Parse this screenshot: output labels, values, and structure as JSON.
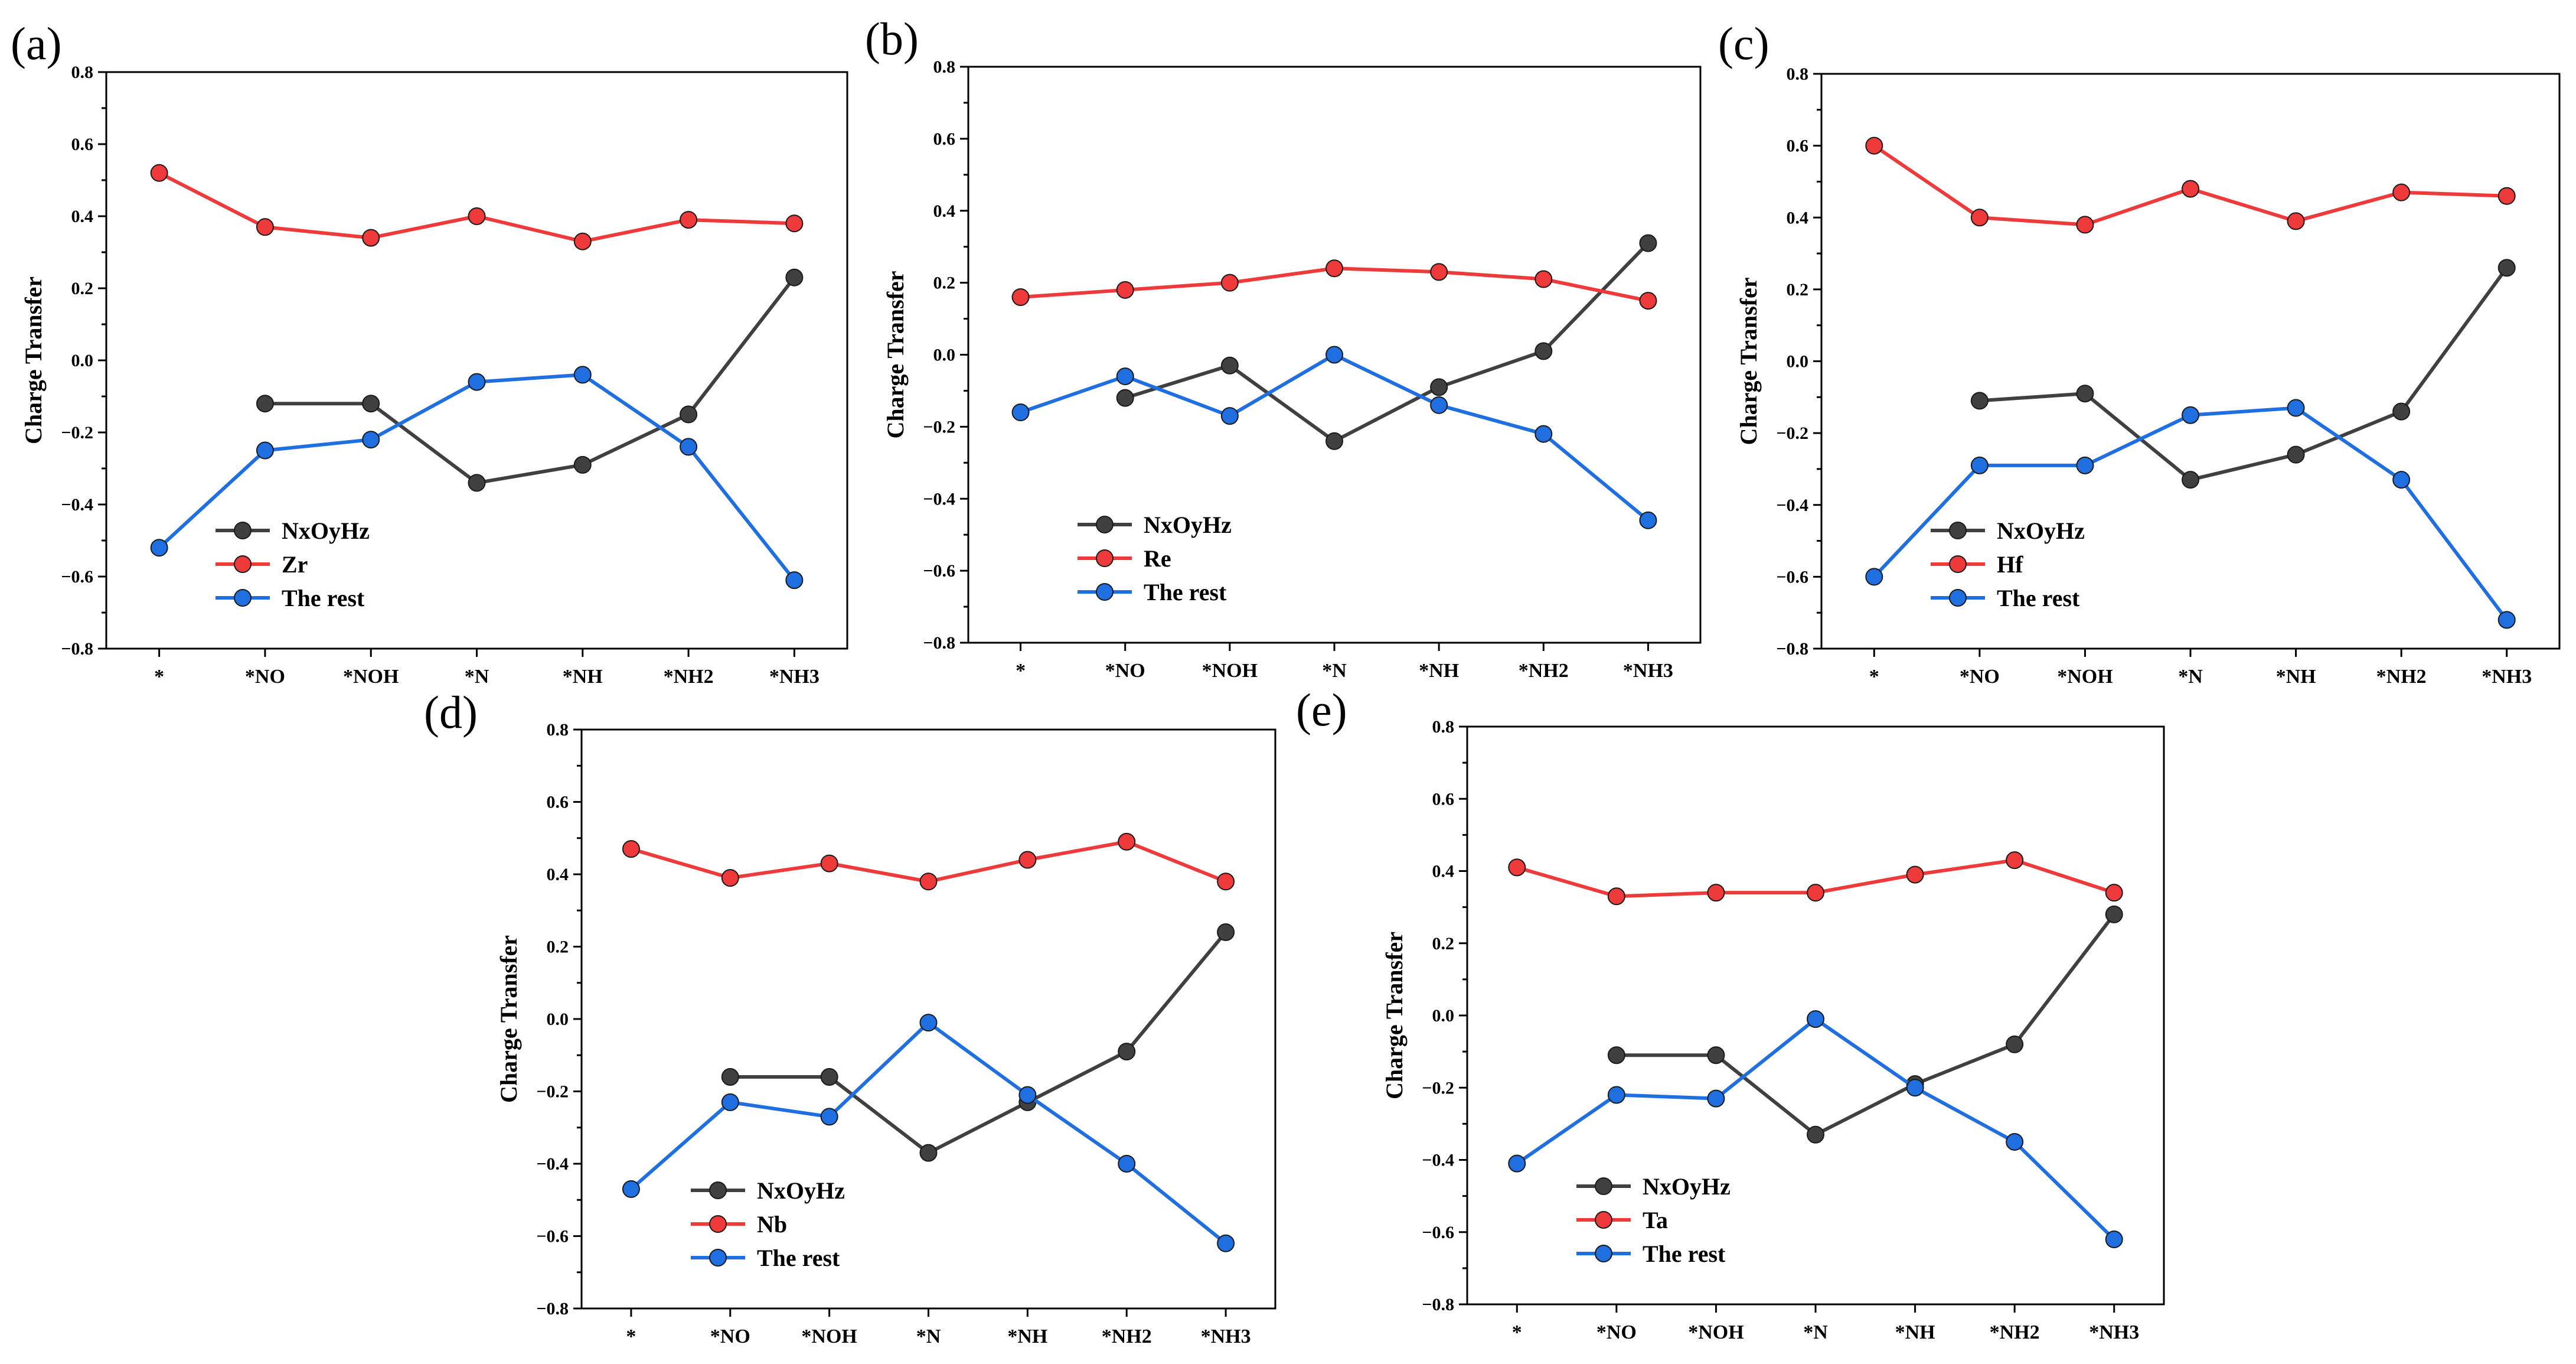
{
  "colors": {
    "NxOyHz": "#404040",
    "metal": "#ee3a3a",
    "rest": "#1f6fe0"
  },
  "chart_data": [
    {
      "type": "line",
      "panel": "(a)",
      "ylabel": "Charge Transfer",
      "xlabel": "",
      "ylim": [
        -0.8,
        0.8
      ],
      "yticks": [
        "0.8",
        "0.6",
        "0.4",
        "0.2",
        "0.0",
        "−0.2",
        "−0.4",
        "−0.6",
        "−0.8"
      ],
      "categories": [
        "*",
        "*NO",
        "*NOH",
        "*N",
        "*NH",
        "*NH2",
        "*NH3"
      ],
      "legend_position": "lower-left",
      "series": [
        {
          "name": "NxOyHz",
          "values": [
            null,
            -0.12,
            -0.12,
            -0.34,
            -0.29,
            -0.15,
            0.23
          ]
        },
        {
          "name": "Zr",
          "values": [
            0.52,
            0.37,
            0.34,
            0.4,
            0.33,
            0.39,
            0.38
          ]
        },
        {
          "name": "The rest",
          "values": [
            -0.52,
            -0.25,
            -0.22,
            -0.06,
            -0.04,
            -0.24,
            -0.61
          ]
        }
      ]
    },
    {
      "type": "line",
      "panel": "(b)",
      "ylabel": "Charge Transfer",
      "xlabel": "",
      "ylim": [
        -0.8,
        0.8
      ],
      "yticks": [
        "0.8",
        "0.6",
        "0.4",
        "0.2",
        "0.0",
        "−0.2",
        "−0.4",
        "−0.6",
        "−0.8"
      ],
      "categories": [
        "*",
        "*NO",
        "*NOH",
        "*N",
        "*NH",
        "*NH2",
        "*NH3"
      ],
      "legend_position": "lower-left",
      "series": [
        {
          "name": "NxOyHz",
          "values": [
            null,
            -0.12,
            -0.03,
            -0.24,
            -0.09,
            0.01,
            0.31
          ]
        },
        {
          "name": "Re",
          "values": [
            0.16,
            0.18,
            0.2,
            0.24,
            0.23,
            0.21,
            0.15
          ]
        },
        {
          "name": "The rest",
          "values": [
            -0.16,
            -0.06,
            -0.17,
            0.0,
            -0.14,
            -0.22,
            -0.46
          ]
        }
      ]
    },
    {
      "type": "line",
      "panel": "(c)",
      "ylabel": "Charge Transfer",
      "xlabel": "",
      "ylim": [
        -0.8,
        0.8
      ],
      "yticks": [
        "0.8",
        "0.6",
        "0.4",
        "0.2",
        "0.0",
        "−0.2",
        "−0.4",
        "−0.6",
        "−0.8"
      ],
      "categories": [
        "*",
        "*NO",
        "*NOH",
        "*N",
        "*NH",
        "*NH2",
        "*NH3"
      ],
      "legend_position": "lower-left",
      "series": [
        {
          "name": "NxOyHz",
          "values": [
            null,
            -0.11,
            -0.09,
            -0.33,
            -0.26,
            -0.14,
            0.26
          ]
        },
        {
          "name": "Hf",
          "values": [
            0.6,
            0.4,
            0.38,
            0.48,
            0.39,
            0.47,
            0.46
          ]
        },
        {
          "name": "The rest",
          "values": [
            -0.6,
            -0.29,
            -0.29,
            -0.15,
            -0.13,
            -0.33,
            -0.72
          ]
        }
      ]
    },
    {
      "type": "line",
      "panel": "(d)",
      "ylabel": "Charge Transfer",
      "xlabel": "",
      "ylim": [
        -0.8,
        0.8
      ],
      "yticks": [
        "0.8",
        "0.6",
        "0.4",
        "0.2",
        "0.0",
        "−0.2",
        "−0.4",
        "−0.6",
        "−0.8"
      ],
      "categories": [
        "*",
        "*NO",
        "*NOH",
        "*N",
        "*NH",
        "*NH2",
        "*NH3"
      ],
      "legend_position": "lower-left",
      "series": [
        {
          "name": "NxOyHz",
          "values": [
            null,
            -0.16,
            -0.16,
            -0.37,
            -0.23,
            -0.09,
            0.24
          ]
        },
        {
          "name": "Nb",
          "values": [
            0.47,
            0.39,
            0.43,
            0.38,
            0.44,
            0.49,
            0.38
          ]
        },
        {
          "name": "The rest",
          "values": [
            -0.47,
            -0.23,
            -0.27,
            -0.01,
            -0.21,
            -0.4,
            -0.62
          ]
        }
      ]
    },
    {
      "type": "line",
      "panel": "(e)",
      "ylabel": "Charge Transfer",
      "xlabel": "",
      "ylim": [
        -0.8,
        0.8
      ],
      "yticks": [
        "0.8",
        "0.6",
        "0.4",
        "0.2",
        "0.0",
        "−0.2",
        "−0.4",
        "−0.6",
        "−0.8"
      ],
      "categories": [
        "*",
        "*NO",
        "*NOH",
        "*N",
        "*NH",
        "*NH2",
        "*NH3"
      ],
      "legend_position": "lower-left",
      "series": [
        {
          "name": "NxOyHz",
          "values": [
            null,
            -0.11,
            -0.11,
            -0.33,
            -0.19,
            -0.08,
            0.28
          ]
        },
        {
          "name": "Ta",
          "values": [
            0.41,
            0.33,
            0.34,
            0.34,
            0.39,
            0.43,
            0.34
          ]
        },
        {
          "name": "The rest",
          "values": [
            -0.41,
            -0.22,
            -0.23,
            -0.01,
            -0.2,
            -0.35,
            -0.62
          ]
        }
      ]
    }
  ]
}
